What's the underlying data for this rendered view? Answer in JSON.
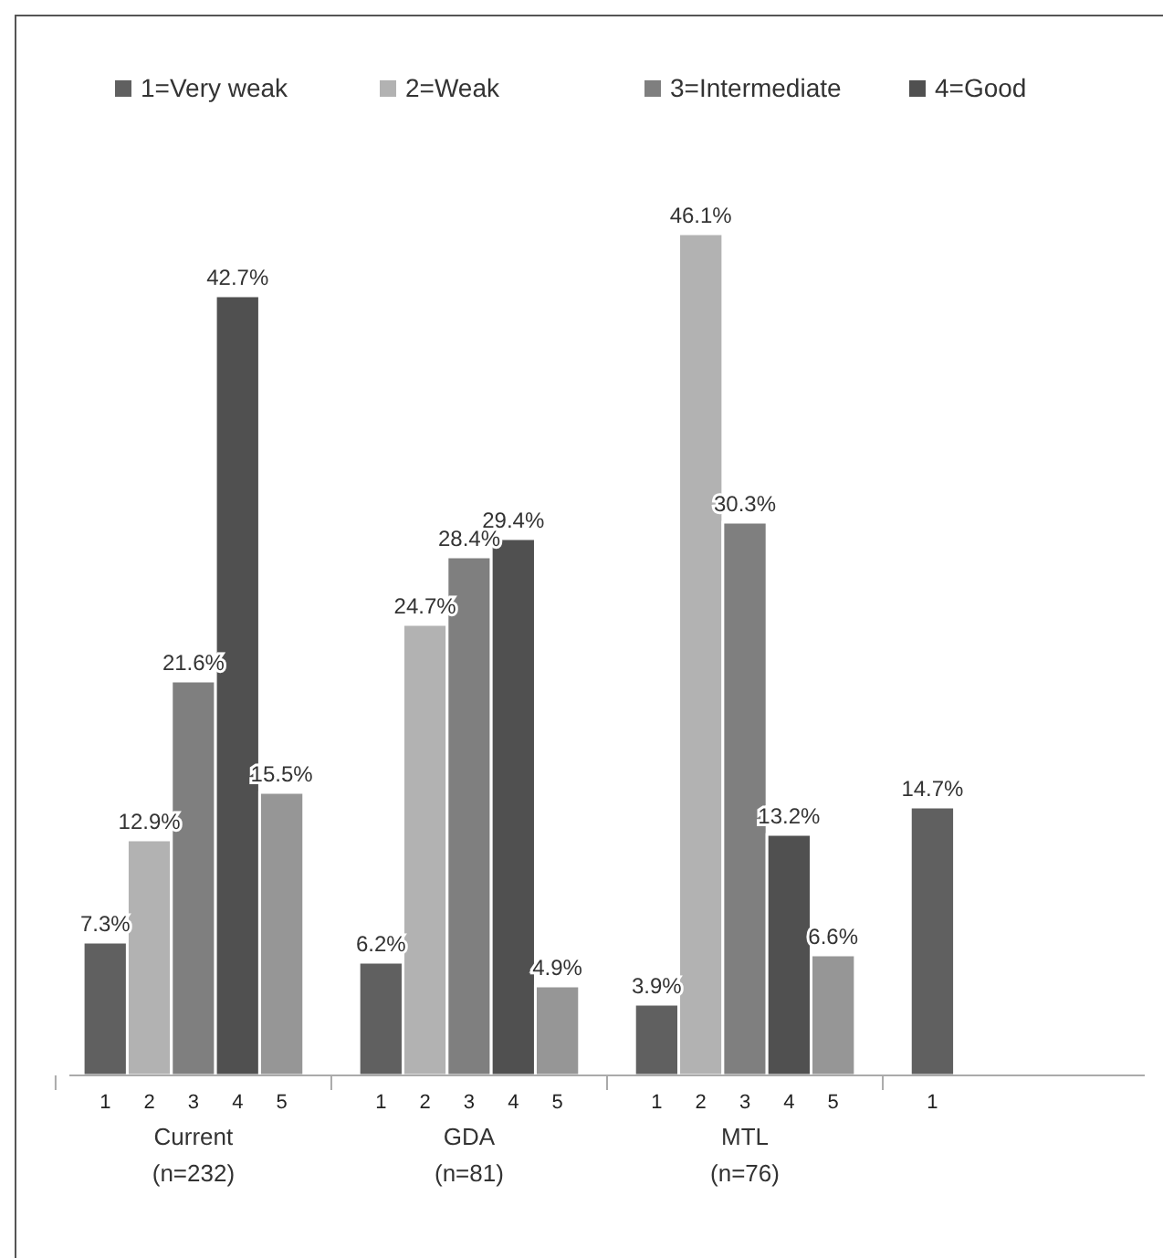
{
  "chart_data": {
    "type": "bar",
    "categories": [
      "Current\n(n=232)",
      "GDA\n(n=81)",
      "MTL\n(n=76)",
      null
    ],
    "series": [
      {
        "name": "1=Very weak",
        "color": "#606060",
        "values": [
          7.3,
          6.2,
          3.9,
          14.7
        ],
        "value_labels": [
          "7.3%",
          "6.2%",
          "3.9%",
          "14.7%"
        ]
      },
      {
        "name": "2=Weak",
        "color": "#b2b2b2",
        "values": [
          12.9,
          24.7,
          46.1,
          null
        ],
        "value_labels": [
          "12.9%",
          "24.7%",
          "46.1%",
          null
        ]
      },
      {
        "name": "3=Intermediate",
        "color": "#7f7f7f",
        "values": [
          21.6,
          28.4,
          30.3,
          null
        ],
        "value_labels": [
          "21.6%",
          "28.4%",
          "30.3%",
          null
        ]
      },
      {
        "name": "4=Good",
        "color": "#505050",
        "values": [
          42.7,
          29.4,
          13.2,
          null
        ],
        "value_labels": [
          "42.7%",
          "29.4%",
          "13.2%",
          null
        ]
      },
      {
        "color": "#969696",
        "values": [
          15.5,
          4.9,
          6.6,
          null
        ],
        "value_labels": [
          "15.5%",
          "4.9%",
          "6.6%",
          null
        ]
      }
    ],
    "annotations": [
      "1",
      "2",
      "3",
      "4",
      "5"
    ],
    "legend": "top"
  }
}
